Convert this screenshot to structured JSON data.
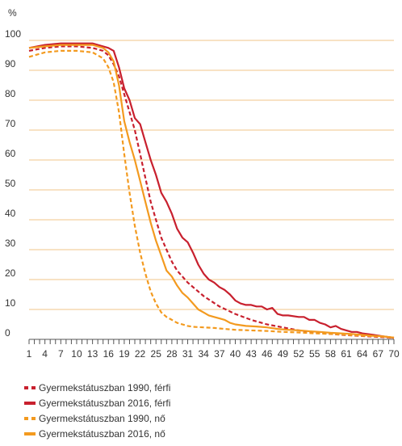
{
  "chart_data": {
    "type": "line",
    "ylabel": "%",
    "ylim": [
      0,
      100
    ],
    "yticks": [
      0,
      10,
      20,
      30,
      40,
      50,
      60,
      70,
      80,
      90,
      100
    ],
    "xlim": [
      1,
      70
    ],
    "xticks": [
      1,
      4,
      7,
      10,
      13,
      16,
      19,
      22,
      25,
      28,
      31,
      34,
      37,
      40,
      43,
      46,
      49,
      52,
      55,
      58,
      61,
      64,
      67,
      70
    ],
    "grid": "horizontal",
    "legend_position": "bottom-left",
    "series": [
      {
        "name": "Gyermekstátuszban 1990, férfi",
        "color": "#c8202e",
        "style": "dashed",
        "x": [
          1,
          4,
          7,
          10,
          13,
          15,
          16,
          17,
          18,
          19,
          20,
          21,
          22,
          23,
          24,
          25,
          26,
          27,
          28,
          29,
          30,
          31,
          32,
          34,
          37,
          40,
          43,
          46,
          49,
          52,
          55,
          58,
          61,
          64,
          67,
          70
        ],
        "y": [
          96.5,
          97.5,
          98,
          98,
          97.5,
          96.5,
          95,
          92,
          88,
          82,
          76,
          70,
          62,
          54,
          46,
          40,
          34,
          30,
          26,
          23,
          21,
          19,
          17.5,
          14.5,
          11,
          8.5,
          6.5,
          5,
          4,
          3,
          2.3,
          1.8,
          1.4,
          1.1,
          0.8,
          0.5
        ]
      },
      {
        "name": "Gyermekstátuszban 2016, férfi",
        "color": "#c8202e",
        "style": "solid",
        "x": [
          1,
          4,
          7,
          10,
          13,
          15,
          16,
          17,
          18,
          19,
          20,
          21,
          22,
          23,
          24,
          25,
          26,
          27,
          28,
          29,
          30,
          31,
          32,
          33,
          34,
          35,
          36,
          37,
          38,
          39,
          40,
          41,
          42,
          43,
          44,
          45,
          46,
          47,
          48,
          49,
          50,
          52,
          53,
          54,
          55,
          56,
          57,
          58,
          59,
          60,
          61,
          62,
          63,
          64,
          66,
          68,
          70
        ],
        "y": [
          97.5,
          98.5,
          99,
          99,
          99,
          98,
          97.5,
          96.5,
          91,
          84,
          80,
          74,
          72,
          66,
          60,
          55,
          49,
          46,
          42,
          37,
          34,
          32.5,
          29,
          25,
          22,
          20,
          19,
          17.5,
          16.5,
          15,
          13,
          12,
          11.5,
          11.5,
          11,
          11,
          10,
          10.5,
          8.5,
          8,
          8,
          7.5,
          7.5,
          6.5,
          6.5,
          5.5,
          5,
          4,
          4.5,
          3.5,
          3,
          2.5,
          2.5,
          2,
          1.5,
          1,
          0.5
        ]
      },
      {
        "name": "Gyermekstátuszban 1990, nő",
        "color": "#f39a1f",
        "style": "dashed",
        "x": [
          1,
          4,
          7,
          10,
          13,
          15,
          16,
          17,
          18,
          19,
          20,
          21,
          22,
          23,
          24,
          25,
          26,
          27,
          28,
          29,
          30,
          31,
          32,
          34,
          36,
          38,
          40,
          43,
          46,
          49,
          52,
          55,
          58,
          61,
          64,
          67,
          70
        ],
        "y": [
          94.5,
          96,
          96.5,
          96.5,
          96,
          94,
          91,
          86,
          76,
          62,
          49,
          38,
          29,
          22,
          16,
          12,
          9,
          7.5,
          6.5,
          5.5,
          5,
          4.5,
          4.2,
          4,
          3.8,
          3.5,
          3.2,
          3,
          2.8,
          2.5,
          2.3,
          2,
          1.8,
          1.5,
          1.2,
          1,
          0.6
        ]
      },
      {
        "name": "Gyermekstátuszban 2016, nő",
        "color": "#f39a1f",
        "style": "solid",
        "x": [
          1,
          4,
          7,
          10,
          13,
          15,
          16,
          17,
          18,
          19,
          20,
          21,
          22,
          23,
          24,
          25,
          26,
          27,
          28,
          29,
          30,
          31,
          32,
          33,
          34,
          35,
          36,
          37,
          38,
          39,
          40,
          42,
          44,
          46,
          48,
          50,
          52,
          54,
          56,
          58,
          60,
          62,
          64,
          66,
          68,
          70
        ],
        "y": [
          97.5,
          98,
          98.5,
          98.5,
          98.5,
          97.5,
          96,
          93,
          85,
          73,
          66,
          60,
          53,
          46,
          39,
          33,
          28,
          23,
          21,
          18,
          15.5,
          14,
          12,
          10,
          9,
          8,
          7.5,
          7,
          6.5,
          5.5,
          5,
          4.5,
          4.3,
          4,
          3.5,
          3.2,
          3,
          2.7,
          2.5,
          2.2,
          2,
          1.8,
          1.5,
          1.2,
          1,
          0.6
        ]
      }
    ]
  }
}
